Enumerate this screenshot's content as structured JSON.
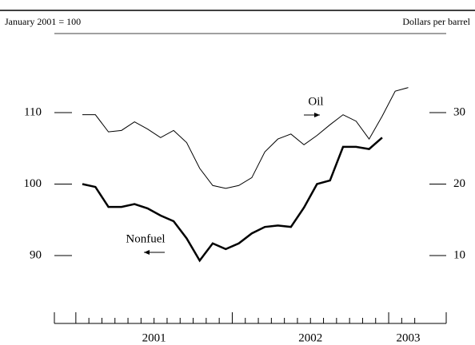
{
  "chart_data": {
    "type": "line",
    "left_axis_label": "January 2001 = 100",
    "right_axis_label": "Dollars per barrel",
    "categories": [
      null,
      null,
      null,
      null,
      null,
      null,
      null,
      null,
      null,
      null,
      null,
      null,
      null,
      null,
      null,
      null,
      null,
      null,
      null,
      null,
      null,
      null,
      null,
      null,
      null,
      null
    ],
    "xticks": [
      {
        "value": 5.5,
        "label": "2001"
      },
      {
        "value": 17.5,
        "label": "2002"
      },
      {
        "value": 25,
        "label": "2003"
      }
    ],
    "series": [
      {
        "name": "Oil",
        "color": "#000000",
        "axis": "y2",
        "width": 1,
        "values": [
          29.7,
          29.7,
          27.3,
          27.5,
          28.7,
          27.7,
          26.5,
          27.5,
          25.8,
          22.2,
          19.8,
          19.4,
          19.8,
          20.9,
          24.5,
          26.3,
          27.0,
          25.5,
          26.8,
          28.3,
          29.7,
          28.8,
          26.3,
          29.5,
          33.0,
          33.5
        ]
      },
      {
        "name": "Nonfuel",
        "color": "#000000",
        "width": 2.5,
        "values": [
          100.0,
          99.6,
          96.8,
          96.8,
          97.2,
          96.6,
          95.6,
          94.8,
          92.4,
          89.3,
          91.7,
          90.9,
          91.7,
          93.1,
          94.0,
          94.2,
          94.0,
          96.7,
          100.0,
          100.5,
          105.2,
          105.2,
          104.9,
          106.5,
          null,
          null
        ]
      }
    ],
    "ylim": [
      80.5,
      120.5
    ],
    "yticks": [
      90,
      100,
      110
    ],
    "y2lim": [
      0.5,
      40.5
    ],
    "y2ticks": [
      10,
      20,
      30
    ]
  }
}
